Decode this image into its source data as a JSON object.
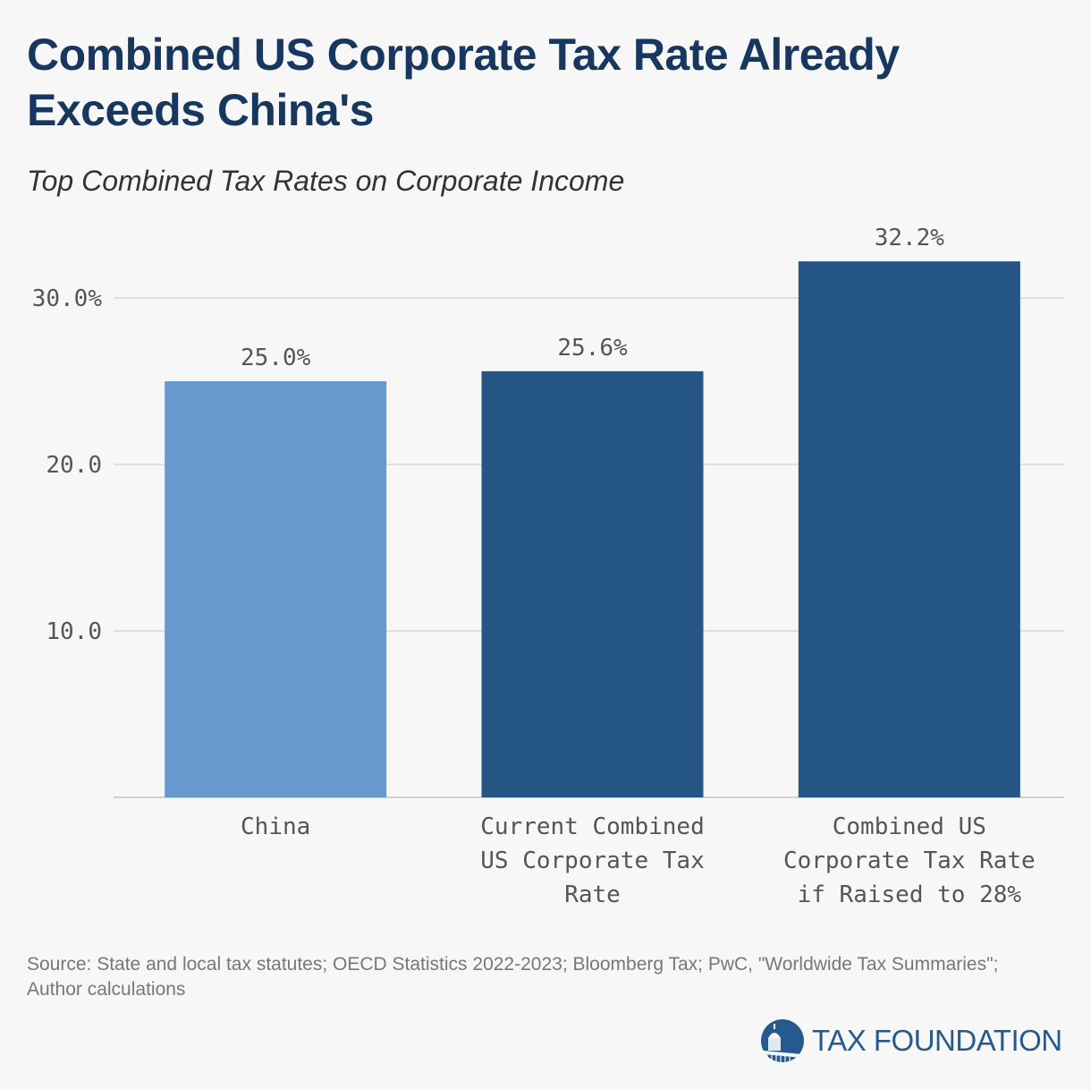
{
  "title": "Combined US Corporate Tax Rate Already Exceeds China's",
  "subtitle": "Top Combined Tax Rates on Corporate Income",
  "source": "Source: State and local tax statutes; OECD Statistics 2022-2023; Bloomberg Tax; PwC, \"Worldwide Tax Summaries\"; Author calculations",
  "logo": {
    "text": "TAX FOUNDATION",
    "icon": "capitol-dome-icon",
    "color": "#255a8f"
  },
  "chart_data": {
    "type": "bar",
    "title": "Top Combined Tax Rates on Corporate Income",
    "categories": [
      [
        "China"
      ],
      [
        "Current Combined",
        "US Corporate Tax",
        "Rate"
      ],
      [
        "Combined US",
        "Corporate Tax Rate",
        "if Raised to 28%"
      ]
    ],
    "values": [
      25.0,
      25.6,
      32.2
    ],
    "data_labels": [
      "25.0%",
      "25.6%",
      "32.2%"
    ],
    "colors": [
      "#6699cc",
      "#245585",
      "#245585"
    ],
    "ylim": [
      0,
      30
    ],
    "yticks": [
      10,
      20,
      30
    ],
    "ytick_labels": [
      "10.0",
      "20.0",
      "30.0%"
    ],
    "grid": true,
    "xlabel": "",
    "ylabel": ""
  }
}
